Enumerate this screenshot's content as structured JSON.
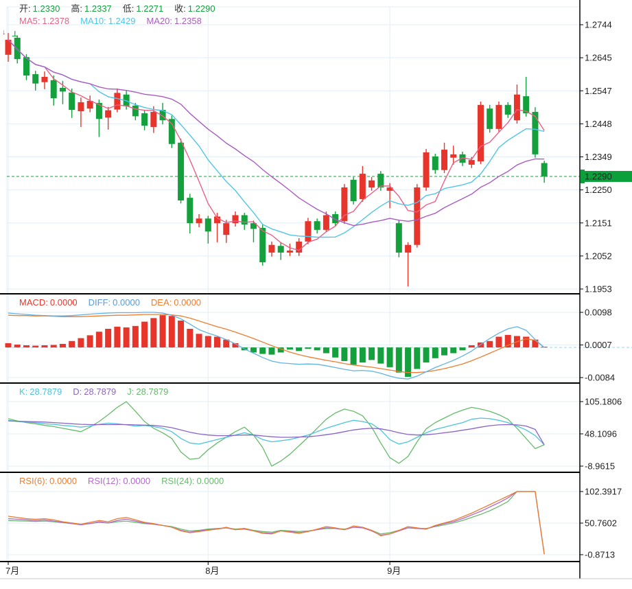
{
  "colors": {
    "up": "#e8352b",
    "down": "#14a03c",
    "label": "#333333",
    "axis_text": "#222222",
    "ma5": "#ec5f84",
    "ma10": "#4fc5e8",
    "ma20": "#aa5bc3",
    "macd_value": "#e8352b",
    "diff": "#5b9bd5",
    "dea": "#ed7d31",
    "diff_line": "#63b2e4",
    "dea_line": "#ed7d31",
    "k": "#4cc3db",
    "d": "#8a64c8",
    "j": "#64bb6a",
    "rsi6": "#ed7d31",
    "rsi12": "#b269c9",
    "rsi24": "#6aba6e",
    "grid": "#e2edf6",
    "divider": "#000000",
    "frame": "#c8c8c8",
    "badge_bg": "#0ca03c",
    "badge_text": "#ffffff",
    "price_line": "#14a03c",
    "macd_zero_dash": "#9fd4e8"
  },
  "main_header": {
    "open_label": "开:",
    "open": "1.2330",
    "high_label": "高:",
    "high": "1.2337",
    "low_label": "低:",
    "low": "1.2271",
    "close_label": "收:",
    "close": "1.2290",
    "ma5_label": "MA5:",
    "ma5": "1.2378",
    "ma10_label": "MA10:",
    "ma10": "1.2429",
    "ma20_label": "MA20:",
    "ma20": "1.2358"
  },
  "indicator_headers": {
    "macd": {
      "l1": "MACD:",
      "v1": "0.0000",
      "l2": "DIFF:",
      "v2": "0.0000",
      "l3": "DEA:",
      "v3": "0.0000"
    },
    "kdj": {
      "l1": "K:",
      "v1": "28.7879",
      "l2": "D:",
      "v2": "28.7879",
      "l3": "J:",
      "v3": "28.7879"
    },
    "rsi": {
      "l1": "RSI(6):",
      "v1": "0.0000",
      "l2": "RSI(12):",
      "v2": "0.0000",
      "l3": "RSI(24):",
      "v3": "0.0000"
    }
  },
  "price_axis": {
    "labels": [
      "1.2744",
      "1.2645",
      "1.2547",
      "1.2448",
      "1.2349",
      "1.2250",
      "1.2151",
      "1.2052",
      "1.1953"
    ],
    "current": "1.2290"
  },
  "macd_axis": {
    "labels": [
      "0.0098",
      "0.0007",
      "-0.0084"
    ]
  },
  "kdj_axis": {
    "labels": [
      "105.1806",
      "48.1096",
      "-8.9615"
    ]
  },
  "rsi_axis": {
    "labels": [
      "102.3917",
      "50.7602",
      "-0.8713"
    ]
  },
  "x_axis": {
    "labels": [
      {
        "text": "7月",
        "index": 0
      },
      {
        "text": "8月",
        "index": 22
      },
      {
        "text": "9月",
        "index": 42
      }
    ]
  },
  "markers": [
    {
      "glyph": "↓",
      "color": "#e8352b",
      "x": 3,
      "y": 42
    },
    {
      "glyph": "⊥",
      "color": "#14a03c",
      "x": 17,
      "y": 45
    }
  ],
  "chart_data": {
    "type": "candlestick",
    "title": "",
    "price_range": [
      1.1953,
      1.2744
    ],
    "current_price": 1.229,
    "candles": [
      [
        1.2654,
        1.2719,
        1.2633,
        1.2699
      ],
      [
        1.2705,
        1.2712,
        1.2628,
        1.2641
      ],
      [
        1.2647,
        1.2656,
        1.2578,
        1.2592
      ],
      [
        1.2596,
        1.2606,
        1.2547,
        1.2568
      ],
      [
        1.2572,
        1.2604,
        1.2551,
        1.2588
      ],
      [
        1.2578,
        1.2592,
        1.2502,
        1.2524
      ],
      [
        1.2555,
        1.2576,
        1.2506,
        1.2544
      ],
      [
        1.2541,
        1.2553,
        1.2465,
        1.2489
      ],
      [
        1.2485,
        1.2526,
        1.2438,
        1.2512
      ],
      [
        1.2493,
        1.2532,
        1.2482,
        1.2516
      ],
      [
        1.251,
        1.252,
        1.2408,
        1.2462
      ],
      [
        1.2466,
        1.2498,
        1.243,
        1.2488
      ],
      [
        1.249,
        1.2553,
        1.2482,
        1.254
      ],
      [
        1.2535,
        1.2546,
        1.249,
        1.25
      ],
      [
        1.2502,
        1.251,
        1.2458,
        1.247
      ],
      [
        1.2479,
        1.2489,
        1.2428,
        1.2442
      ],
      [
        1.2438,
        1.25,
        1.242,
        1.2483
      ],
      [
        1.2489,
        1.251,
        1.2446,
        1.2458
      ],
      [
        1.2462,
        1.2472,
        1.2375,
        1.2387
      ],
      [
        1.2391,
        1.2403,
        1.2209,
        1.2218
      ],
      [
        1.2226,
        1.2238,
        1.2119,
        1.215
      ],
      [
        1.215,
        1.2177,
        1.2138,
        1.2164
      ],
      [
        1.2164,
        1.2172,
        1.2089,
        1.2125
      ],
      [
        1.215,
        1.2181,
        1.2093,
        1.217
      ],
      [
        1.2115,
        1.216,
        1.2091,
        1.215
      ],
      [
        1.215,
        1.2185,
        1.214,
        1.2174
      ],
      [
        1.2174,
        1.2181,
        1.213,
        1.2146
      ],
      [
        1.215,
        1.2158,
        1.2093,
        1.2133
      ],
      [
        1.2136,
        1.2146,
        1.2023,
        1.2033
      ],
      [
        1.2062,
        1.2095,
        1.205,
        1.2085
      ],
      [
        1.2082,
        1.2093,
        1.204,
        1.2062
      ],
      [
        1.2062,
        1.2089,
        1.2052,
        1.2068
      ],
      [
        1.2062,
        1.2105,
        1.2052,
        1.2095
      ],
      [
        1.2095,
        1.2166,
        1.2087,
        1.2156
      ],
      [
        1.2156,
        1.2164,
        1.2119,
        1.213
      ],
      [
        1.213,
        1.2185,
        1.2123,
        1.2174
      ],
      [
        1.2177,
        1.2185,
        1.2142,
        1.215
      ],
      [
        1.2156,
        1.2267,
        1.2148,
        1.2257
      ],
      [
        1.228,
        1.2288,
        1.2206,
        1.2216
      ],
      [
        1.2222,
        1.2321,
        1.2214,
        1.2298
      ],
      [
        1.2257,
        1.2288,
        1.2247,
        1.2278
      ],
      [
        1.2298,
        1.2306,
        1.2247,
        1.2257
      ],
      [
        1.2247,
        1.227,
        1.2195,
        1.2257
      ],
      [
        1.215,
        1.2158,
        1.2048,
        1.2062
      ],
      [
        1.2062,
        1.2093,
        1.1961,
        1.2085
      ],
      [
        1.2085,
        1.2267,
        1.2077,
        1.2257
      ],
      [
        1.2257,
        1.2372,
        1.2247,
        1.2362
      ],
      [
        1.235,
        1.2358,
        1.2298,
        1.2309
      ],
      [
        1.2309,
        1.2391,
        1.23,
        1.237
      ],
      [
        1.2346,
        1.2382,
        1.2325,
        1.2356
      ],
      [
        1.2356,
        1.2364,
        1.2321,
        1.2331
      ],
      [
        1.2325,
        1.2348,
        1.2315,
        1.2339
      ],
      [
        1.2335,
        1.2514,
        1.2327,
        1.2504
      ],
      [
        1.2493,
        1.2504,
        1.2421,
        1.2432
      ],
      [
        1.2432,
        1.2514,
        1.2424,
        1.2504
      ],
      [
        1.2504,
        1.2512,
        1.2465,
        1.2475
      ],
      [
        1.2458,
        1.2565,
        1.2448,
        1.2535
      ],
      [
        1.253,
        1.2588,
        1.2469,
        1.2479
      ],
      [
        1.2483,
        1.2497,
        1.2346,
        1.2356
      ],
      [
        1.233,
        1.2337,
        1.2271,
        1.229
      ]
    ],
    "ma_windows": [
      5,
      10,
      20
    ],
    "macd": {
      "range": [
        -0.0084,
        0.0098
      ],
      "hist": [
        0.0012,
        0.0008,
        0.0006,
        0.0005,
        0.0006,
        0.0007,
        0.001,
        0.0018,
        0.0026,
        0.0034,
        0.0044,
        0.0052,
        0.0058,
        0.0056,
        0.006,
        0.0072,
        0.0082,
        0.009,
        0.0088,
        0.0075,
        0.0052,
        0.0038,
        0.0032,
        0.003,
        0.0022,
        0.0012,
        -0.0008,
        -0.0014,
        -0.0018,
        -0.002,
        -0.0014,
        -0.0006,
        -0.001,
        -0.0004,
        -0.0008,
        -0.0016,
        -0.0028,
        -0.0038,
        -0.0048,
        -0.0042,
        -0.0035,
        -0.0045,
        -0.0055,
        -0.007,
        -0.0082,
        -0.006,
        -0.0042,
        -0.003,
        -0.0022,
        -0.0016,
        -0.0008,
        0.0006,
        0.0014,
        0.0018,
        0.003,
        0.0035,
        0.0032,
        0.003,
        0.0022,
        0.0002
      ],
      "diff": [
        0.0096,
        0.0094,
        0.0092,
        0.009,
        0.0089,
        0.0088,
        0.0088,
        0.0089,
        0.0091,
        0.0093,
        0.0095,
        0.0096,
        0.0097,
        0.0097,
        0.0097,
        0.0098,
        0.0098,
        0.0096,
        0.009,
        0.008,
        0.0065,
        0.005,
        0.004,
        0.0032,
        0.0022,
        0.001,
        -0.0004,
        -0.0016,
        -0.0028,
        -0.0038,
        -0.0043,
        -0.0045,
        -0.0047,
        -0.0046,
        -0.0047,
        -0.0051,
        -0.0056,
        -0.0061,
        -0.0065,
        -0.0064,
        -0.0066,
        -0.0072,
        -0.008,
        -0.0086,
        -0.0088,
        -0.008,
        -0.0068,
        -0.0056,
        -0.0046,
        -0.0036,
        -0.0024,
        -0.001,
        0.0008,
        0.0025,
        0.004,
        0.0052,
        0.0058,
        0.0048,
        0.0022,
        0.0
      ],
      "dea": [
        0.009,
        0.0089,
        0.0089,
        0.0088,
        0.0088,
        0.0087,
        0.0086,
        0.0086,
        0.0086,
        0.0087,
        0.0088,
        0.0089,
        0.009,
        0.009,
        0.0091,
        0.0092,
        0.0092,
        0.0092,
        0.0091,
        0.0088,
        0.0082,
        0.0074,
        0.0066,
        0.0058,
        0.0051,
        0.0043,
        0.0034,
        0.0025,
        0.0015,
        0.0005,
        -0.0004,
        -0.0013,
        -0.002,
        -0.0026,
        -0.0031,
        -0.0036,
        -0.004,
        -0.0045,
        -0.0049,
        -0.0052,
        -0.0055,
        -0.0059,
        -0.0063,
        -0.0067,
        -0.007,
        -0.007,
        -0.0068,
        -0.0064,
        -0.0059,
        -0.0053,
        -0.0046,
        -0.0037,
        -0.0027,
        -0.0016,
        -0.0005,
        0.0006,
        0.0016,
        0.0024,
        0.002,
        0.0
      ]
    },
    "kdj": {
      "range": [
        -8.9615,
        105.1806
      ],
      "k": [
        72,
        70,
        69,
        68,
        66,
        65,
        63,
        62,
        60,
        62,
        65,
        67,
        66,
        64,
        62,
        63,
        61,
        58,
        52,
        40,
        32,
        30,
        34,
        38,
        42,
        46,
        50,
        46,
        38,
        34,
        36,
        38,
        42,
        46,
        52,
        58,
        63,
        68,
        72,
        70,
        66,
        55,
        38,
        30,
        34,
        42,
        50,
        56,
        60,
        64,
        68,
        74,
        76,
        75,
        72,
        68,
        62,
        55,
        45,
        28.7879
      ],
      "d": [
        71,
        70.5,
        70,
        69.5,
        69,
        68,
        67,
        66,
        65,
        64.5,
        64.5,
        64.5,
        64.5,
        64.5,
        64,
        63.5,
        63,
        61.5,
        59,
        55,
        51,
        48,
        46,
        45,
        45,
        45.5,
        46,
        46,
        44.5,
        43,
        42,
        42,
        42.5,
        43,
        44.5,
        46.5,
        49,
        52,
        55,
        57,
        58,
        57,
        54,
        50,
        47,
        46,
        46.5,
        48,
        50,
        52,
        54.5,
        57,
        60,
        62.5,
        64,
        64.5,
        64,
        62,
        56,
        28.7879
      ],
      "j": [
        75,
        71,
        68,
        66,
        63,
        61,
        58,
        55,
        52,
        60,
        70,
        82,
        95,
        105,
        88,
        70,
        58,
        50,
        40,
        16,
        3,
        5,
        20,
        32,
        42,
        52,
        60,
        46,
        24,
        -9,
        0,
        12,
        27,
        42,
        58,
        74,
        85,
        92,
        88,
        80,
        60,
        32,
        6,
        -4,
        8,
        34,
        57,
        68,
        76,
        84,
        90,
        95,
        92,
        88,
        82,
        74,
        58,
        40,
        22,
        28.7879
      ]
    },
    "rsi": {
      "range": [
        -0.8713,
        102.3917
      ],
      "rsi6": [
        62,
        60,
        58,
        57,
        58,
        56,
        53,
        51,
        49,
        52,
        55,
        53,
        58,
        60,
        56,
        52,
        50,
        47,
        44,
        38,
        35,
        37,
        39,
        41,
        44,
        40,
        42,
        38,
        34,
        33,
        38,
        36,
        34,
        37,
        41,
        45,
        43,
        40,
        46,
        44,
        39,
        30,
        33,
        39,
        45,
        43,
        41,
        47,
        51,
        55,
        61,
        67,
        74,
        81,
        88,
        95,
        102.39,
        102.39,
        102.39,
        0
      ],
      "rsi12": [
        58,
        57,
        56,
        55,
        56,
        54,
        52,
        50,
        48,
        50,
        53,
        51,
        55,
        57,
        54,
        51,
        49,
        47,
        44,
        39,
        36,
        38,
        40,
        41,
        43,
        40,
        41,
        38,
        35,
        34,
        38,
        37,
        35,
        37,
        40,
        43,
        42,
        40,
        44,
        43,
        38,
        31,
        33,
        38,
        43,
        42,
        41,
        46,
        50,
        53,
        58,
        64,
        70,
        77,
        84,
        92,
        102.39,
        102.39,
        102.39,
        0
      ],
      "rsi24": [
        55,
        54.5,
        54,
        53.5,
        54,
        53,
        51.5,
        50,
        49,
        50,
        52,
        51,
        53,
        54,
        52,
        50,
        49,
        47,
        45,
        41,
        38,
        39,
        41,
        42,
        43,
        41,
        42,
        39,
        37,
        36,
        39,
        38,
        37,
        38,
        40,
        42,
        42,
        41,
        44,
        43,
        39,
        33,
        35,
        39,
        43,
        42,
        42,
        45,
        48,
        51,
        55,
        60,
        65,
        71,
        78,
        86,
        102.39,
        102.39,
        102.39,
        0
      ]
    }
  }
}
